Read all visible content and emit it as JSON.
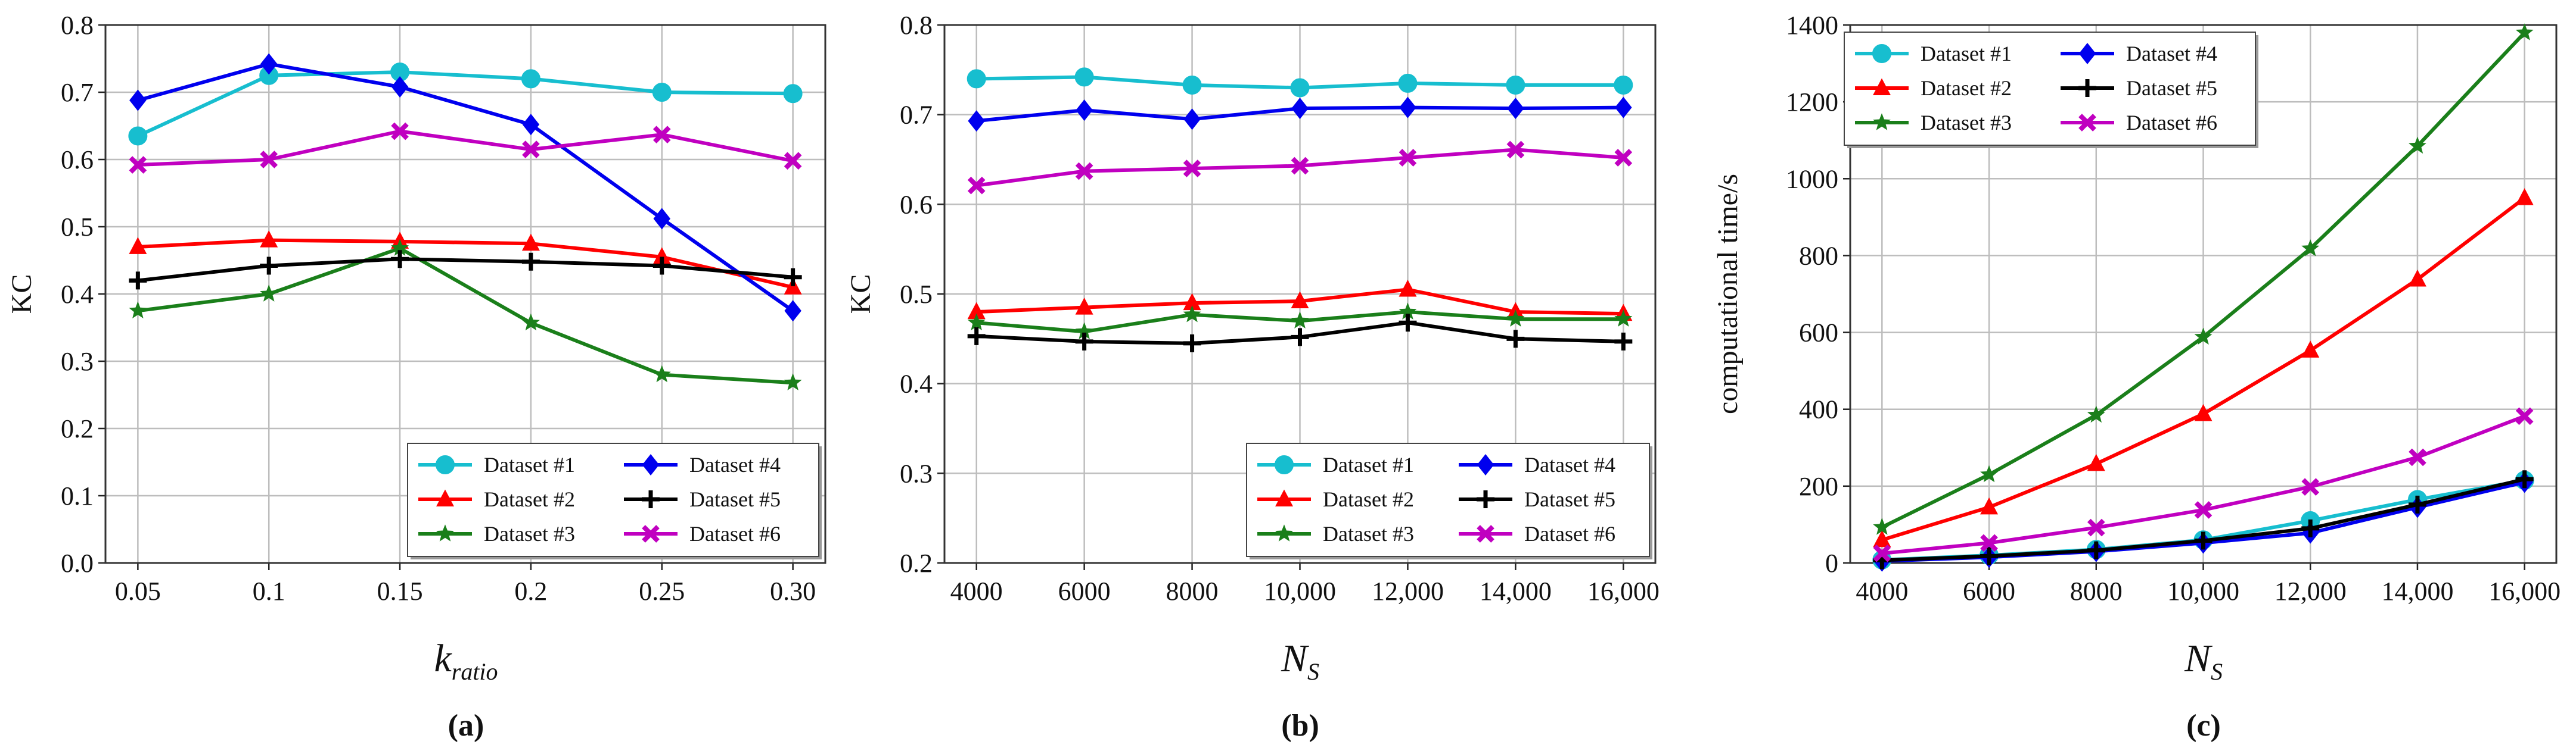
{
  "chart_data": [
    {
      "type": "line",
      "panel_label": "(a)",
      "xlabel_main": "k",
      "xlabel_sub": "ratio",
      "ylabel": "KC",
      "ylim": [
        0.0,
        0.8
      ],
      "yticks": [
        0.0,
        0.1,
        0.2,
        0.3,
        0.4,
        0.5,
        0.6,
        0.7,
        0.8
      ],
      "ytick_labels": [
        "0.0",
        "0.1",
        "0.2",
        "0.3",
        "0.4",
        "0.5",
        "0.6",
        "0.7",
        "0.8"
      ],
      "categories": [
        "0.05",
        "0.1",
        "0.15",
        "0.2",
        "0.25",
        "0.30"
      ],
      "legend_position": "lower-right",
      "series": [
        {
          "name": "Dataset #1",
          "color": "#17becf",
          "marker": "circle",
          "values": [
            0.635,
            0.725,
            0.73,
            0.72,
            0.7,
            0.698
          ]
        },
        {
          "name": "Dataset #2",
          "color": "#ff0000",
          "marker": "triangle",
          "values": [
            0.47,
            0.48,
            0.478,
            0.475,
            0.455,
            0.41
          ]
        },
        {
          "name": "Dataset #3",
          "color": "#1a7f1a",
          "marker": "star",
          "values": [
            0.375,
            0.4,
            0.468,
            0.357,
            0.28,
            0.268
          ]
        },
        {
          "name": "Dataset #4",
          "color": "#0000ee",
          "marker": "diamond",
          "values": [
            0.688,
            0.742,
            0.708,
            0.652,
            0.512,
            0.375
          ]
        },
        {
          "name": "Dataset #5",
          "color": "#000000",
          "marker": "plus",
          "values": [
            0.42,
            0.442,
            0.452,
            0.448,
            0.442,
            0.425
          ]
        },
        {
          "name": "Dataset #6",
          "color": "#c000c0",
          "marker": "x",
          "values": [
            0.592,
            0.6,
            0.642,
            0.615,
            0.637,
            0.598
          ]
        }
      ]
    },
    {
      "type": "line",
      "panel_label": "(b)",
      "xlabel_main": "N",
      "xlabel_sub": "S",
      "ylabel": "KC",
      "ylim": [
        0.2,
        0.8
      ],
      "yticks": [
        0.2,
        0.3,
        0.4,
        0.5,
        0.6,
        0.7,
        0.8
      ],
      "ytick_labels": [
        "0.2",
        "0.3",
        "0.4",
        "0.5",
        "0.6",
        "0.7",
        "0.8"
      ],
      "categories": [
        "4000",
        "6000",
        "8000",
        "10,000",
        "12,000",
        "14,000",
        "16,000"
      ],
      "legend_position": "lower-right",
      "series": [
        {
          "name": "Dataset #1",
          "color": "#17becf",
          "marker": "circle",
          "values": [
            0.74,
            0.742,
            0.733,
            0.73,
            0.735,
            0.733,
            0.733
          ]
        },
        {
          "name": "Dataset #2",
          "color": "#ff0000",
          "marker": "triangle",
          "values": [
            0.48,
            0.485,
            0.49,
            0.492,
            0.505,
            0.48,
            0.478
          ]
        },
        {
          "name": "Dataset #3",
          "color": "#1a7f1a",
          "marker": "star",
          "values": [
            0.468,
            0.458,
            0.477,
            0.47,
            0.48,
            0.472,
            0.472
          ]
        },
        {
          "name": "Dataset #4",
          "color": "#0000ee",
          "marker": "diamond",
          "values": [
            0.693,
            0.705,
            0.695,
            0.707,
            0.708,
            0.707,
            0.708
          ]
        },
        {
          "name": "Dataset #5",
          "color": "#000000",
          "marker": "plus",
          "values": [
            0.453,
            0.447,
            0.445,
            0.452,
            0.468,
            0.45,
            0.447
          ]
        },
        {
          "name": "Dataset #6",
          "color": "#c000c0",
          "marker": "x",
          "values": [
            0.621,
            0.637,
            0.64,
            0.643,
            0.652,
            0.661,
            0.652
          ]
        }
      ]
    },
    {
      "type": "line",
      "panel_label": "(c)",
      "xlabel_main": "N",
      "xlabel_sub": "S",
      "ylabel": "computational time/s",
      "ylim": [
        0,
        1400
      ],
      "yticks": [
        0,
        200,
        400,
        600,
        800,
        1000,
        1200,
        1400
      ],
      "ytick_labels": [
        "0",
        "200",
        "400",
        "600",
        "800",
        "1000",
        "1200",
        "1400"
      ],
      "categories": [
        "4000",
        "6000",
        "8000",
        "10,000",
        "12,000",
        "14,000",
        "16,000"
      ],
      "legend_position": "upper-left",
      "series": [
        {
          "name": "Dataset #1",
          "color": "#17becf",
          "marker": "circle",
          "values": [
            8,
            20,
            35,
            60,
            110,
            165,
            215
          ]
        },
        {
          "name": "Dataset #2",
          "color": "#ff0000",
          "marker": "triangle",
          "values": [
            60,
            145,
            258,
            388,
            553,
            738,
            950
          ]
        },
        {
          "name": "Dataset #3",
          "color": "#1a7f1a",
          "marker": "star",
          "values": [
            93,
            230,
            385,
            588,
            818,
            1085,
            1380
          ]
        },
        {
          "name": "Dataset #4",
          "color": "#0000ee",
          "marker": "diamond",
          "values": [
            5,
            15,
            30,
            52,
            78,
            145,
            210
          ]
        },
        {
          "name": "Dataset #5",
          "color": "#000000",
          "marker": "plus",
          "values": [
            7,
            18,
            33,
            58,
            90,
            152,
            218
          ]
        },
        {
          "name": "Dataset #6",
          "color": "#c000c0",
          "marker": "x",
          "values": [
            25,
            52,
            92,
            138,
            198,
            275,
            382
          ]
        }
      ]
    }
  ]
}
